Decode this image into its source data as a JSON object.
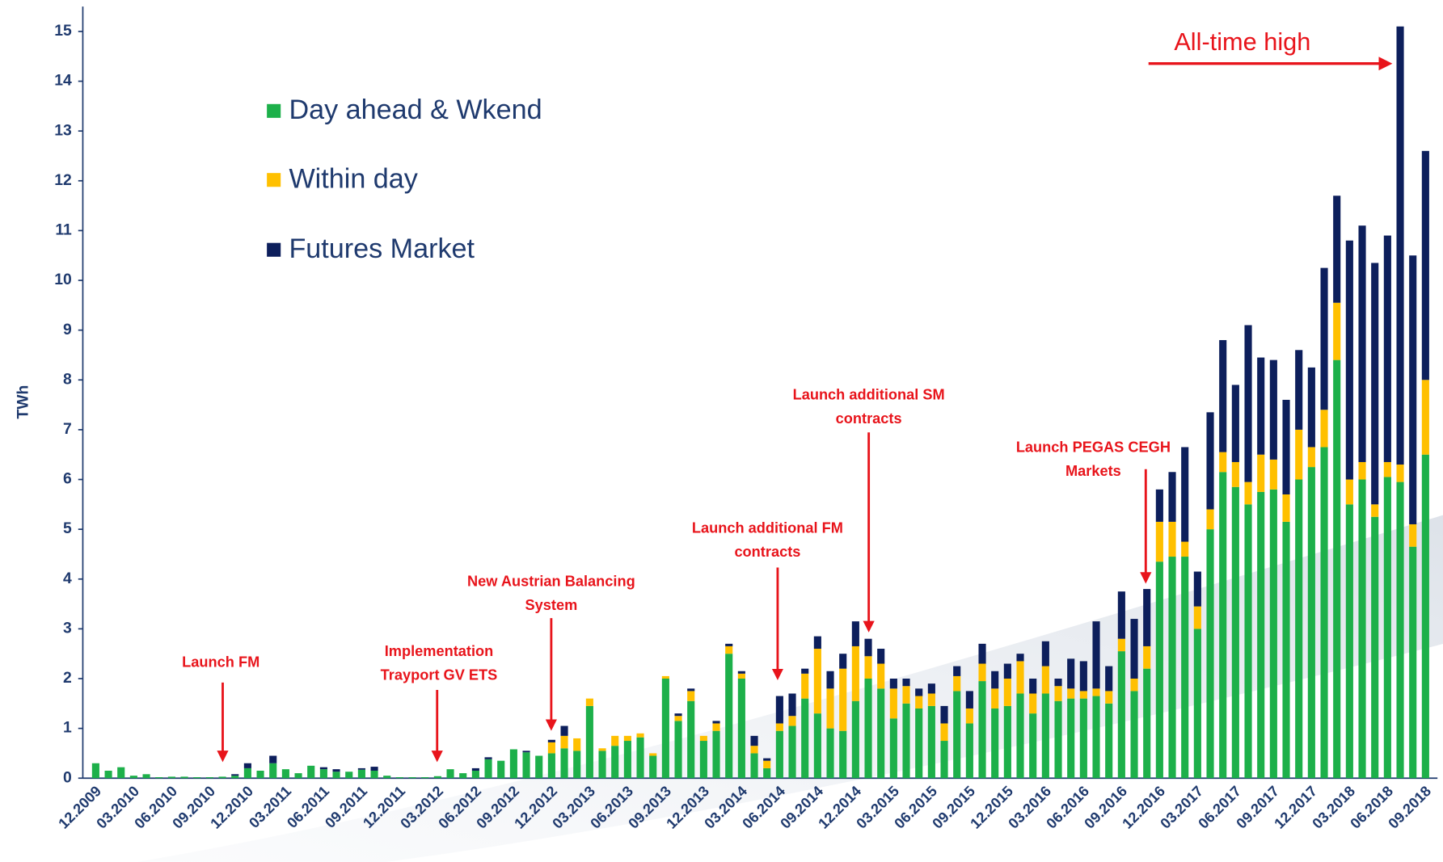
{
  "chart_data": {
    "type": "stacked_bar",
    "y_label": "TWh",
    "ylim": [
      0,
      15.5
    ],
    "yticks": [
      0,
      1,
      2,
      3,
      4,
      5,
      6,
      7,
      8,
      9,
      10,
      11,
      12,
      13,
      14,
      15
    ],
    "legend": "upper left",
    "categories": [
      "12.2009",
      null,
      null,
      "03.2010",
      null,
      null,
      "06.2010",
      null,
      null,
      "09.2010",
      null,
      null,
      "12.2010",
      null,
      null,
      "03.2011",
      null,
      null,
      "06.2011",
      null,
      null,
      "09.2011",
      null,
      null,
      "12.2011",
      null,
      null,
      "03.2012",
      null,
      null,
      "06.2012",
      null,
      null,
      "09.2012",
      null,
      null,
      "12.2012",
      null,
      null,
      "03.2013",
      null,
      null,
      "06.2013",
      null,
      null,
      "09.2013",
      null,
      null,
      "12.2013",
      null,
      null,
      "03.2014",
      null,
      null,
      "06.2014",
      null,
      null,
      "09.2014",
      null,
      null,
      "12.2014",
      null,
      null,
      "03.2015",
      null,
      null,
      "06.2015",
      null,
      null,
      "09.2015",
      null,
      null,
      "12.2015",
      null,
      null,
      "03.2016",
      null,
      null,
      "06.2016",
      null,
      null,
      "09.2016",
      null,
      null,
      "12.2016",
      null,
      null,
      "03.2017",
      null,
      null,
      "06.2017",
      null,
      null,
      "09.2017",
      null,
      null,
      "12.2017",
      null,
      null,
      "03.2018",
      null,
      null,
      "06.2018",
      null,
      null,
      "09.2018"
    ],
    "series": [
      {
        "name": "Day ahead & Wkend",
        "color": "#1db04a",
        "values": [
          0.3,
          0.15,
          0.22,
          0.05,
          0.08,
          0.02,
          0.03,
          0.03,
          0.02,
          0.02,
          0.03,
          0.05,
          0.2,
          0.15,
          0.3,
          0.18,
          0.1,
          0.25,
          0.18,
          0.13,
          0.13,
          0.17,
          0.15,
          0.05,
          0.02,
          0.02,
          0.02,
          0.04,
          0.18,
          0.1,
          0.15,
          0.38,
          0.35,
          0.58,
          0.52,
          0.45,
          0.5,
          0.6,
          0.55,
          1.45,
          0.55,
          0.65,
          0.75,
          0.82,
          0.45,
          2.0,
          1.15,
          1.55,
          0.75,
          0.95,
          2.5,
          2.0,
          0.5,
          0.2,
          0.95,
          1.05,
          1.6,
          1.3,
          1.0,
          0.95,
          1.55,
          2.0,
          1.8,
          1.2,
          1.5,
          1.4,
          1.45,
          0.75,
          1.75,
          1.1,
          1.95,
          1.4,
          1.45,
          1.7,
          1.3,
          1.7,
          1.55,
          1.6,
          1.6,
          1.65,
          1.5,
          2.55,
          1.75,
          2.2,
          4.35,
          4.45,
          4.45,
          3.0,
          5.0,
          6.15,
          5.85,
          5.5,
          5.75,
          5.8,
          5.15,
          6.0,
          6.25,
          6.65,
          8.4,
          5.5,
          6.0,
          5.25,
          6.05,
          5.95,
          4.65,
          6.5
        ]
      },
      {
        "name": "Within day",
        "color": "#ffc000",
        "values": [
          0,
          0,
          0,
          0,
          0,
          0,
          0,
          0,
          0,
          0,
          0,
          0,
          0,
          0,
          0,
          0,
          0,
          0,
          0,
          0,
          0,
          0,
          0,
          0,
          0,
          0,
          0,
          0,
          0,
          0,
          0,
          0,
          0,
          0,
          0,
          0,
          0.22,
          0.25,
          0.25,
          0.15,
          0.05,
          0.2,
          0.1,
          0.08,
          0.05,
          0.05,
          0.1,
          0.2,
          0.1,
          0.15,
          0.15,
          0.1,
          0.15,
          0.15,
          0.15,
          0.2,
          0.5,
          1.3,
          0.8,
          1.25,
          1.1,
          0.45,
          0.5,
          0.6,
          0.35,
          0.25,
          0.25,
          0.35,
          0.3,
          0.3,
          0.35,
          0.4,
          0.55,
          0.65,
          0.4,
          0.55,
          0.3,
          0.2,
          0.15,
          0.15,
          0.25,
          0.25,
          0.25,
          0.45,
          0.8,
          0.7,
          0.3,
          0.45,
          0.4,
          0.4,
          0.5,
          0.45,
          0.75,
          0.6,
          0.55,
          1.0,
          0.4,
          0.75,
          1.15,
          0.5,
          0.35,
          0.25,
          0.3,
          0.35,
          0.45,
          1.5
        ]
      },
      {
        "name": "Futures Market",
        "color": "#0d1f5c",
        "values": [
          0,
          0,
          0,
          0,
          0,
          0,
          0,
          0,
          0,
          0,
          0,
          0.03,
          0.1,
          0,
          0.15,
          0,
          0,
          0,
          0.04,
          0.05,
          0,
          0.03,
          0.08,
          0,
          0,
          0,
          0,
          0,
          0,
          0,
          0.05,
          0.04,
          0,
          0,
          0.03,
          0,
          0.05,
          0.2,
          0,
          0,
          0,
          0,
          0,
          0,
          0,
          0,
          0.05,
          0.05,
          0,
          0.05,
          0.05,
          0.05,
          0.2,
          0.05,
          0.55,
          0.45,
          0.1,
          0.25,
          0.35,
          0.3,
          0.5,
          0.35,
          0.3,
          0.2,
          0.15,
          0.15,
          0.2,
          0.35,
          0.2,
          0.35,
          0.4,
          0.35,
          0.3,
          0.15,
          0.3,
          0.5,
          0.15,
          0.6,
          0.6,
          1.35,
          0.5,
          0.95,
          1.2,
          1.15,
          0.65,
          1.0,
          1.9,
          0.7,
          1.95,
          2.25,
          1.55,
          3.15,
          1.95,
          2.0,
          1.9,
          1.6,
          1.6,
          2.85,
          2.15,
          4.8,
          4.75,
          4.85,
          4.55,
          8.8,
          5.4,
          4.6
        ]
      }
    ],
    "annotations": [
      {
        "lines": [
          "Launch FM"
        ]
      },
      {
        "lines": [
          "Implementation",
          "Trayport GV ETS"
        ]
      },
      {
        "lines": [
          "New Austrian Balancing",
          "System"
        ]
      },
      {
        "lines": [
          "Launch additional FM",
          "contracts"
        ]
      },
      {
        "lines": [
          "Launch additional SM",
          "contracts"
        ]
      },
      {
        "lines": [
          "Launch PEGAS CEGH",
          "Markets"
        ]
      },
      {
        "lines": [
          "All-time high"
        ]
      }
    ]
  }
}
